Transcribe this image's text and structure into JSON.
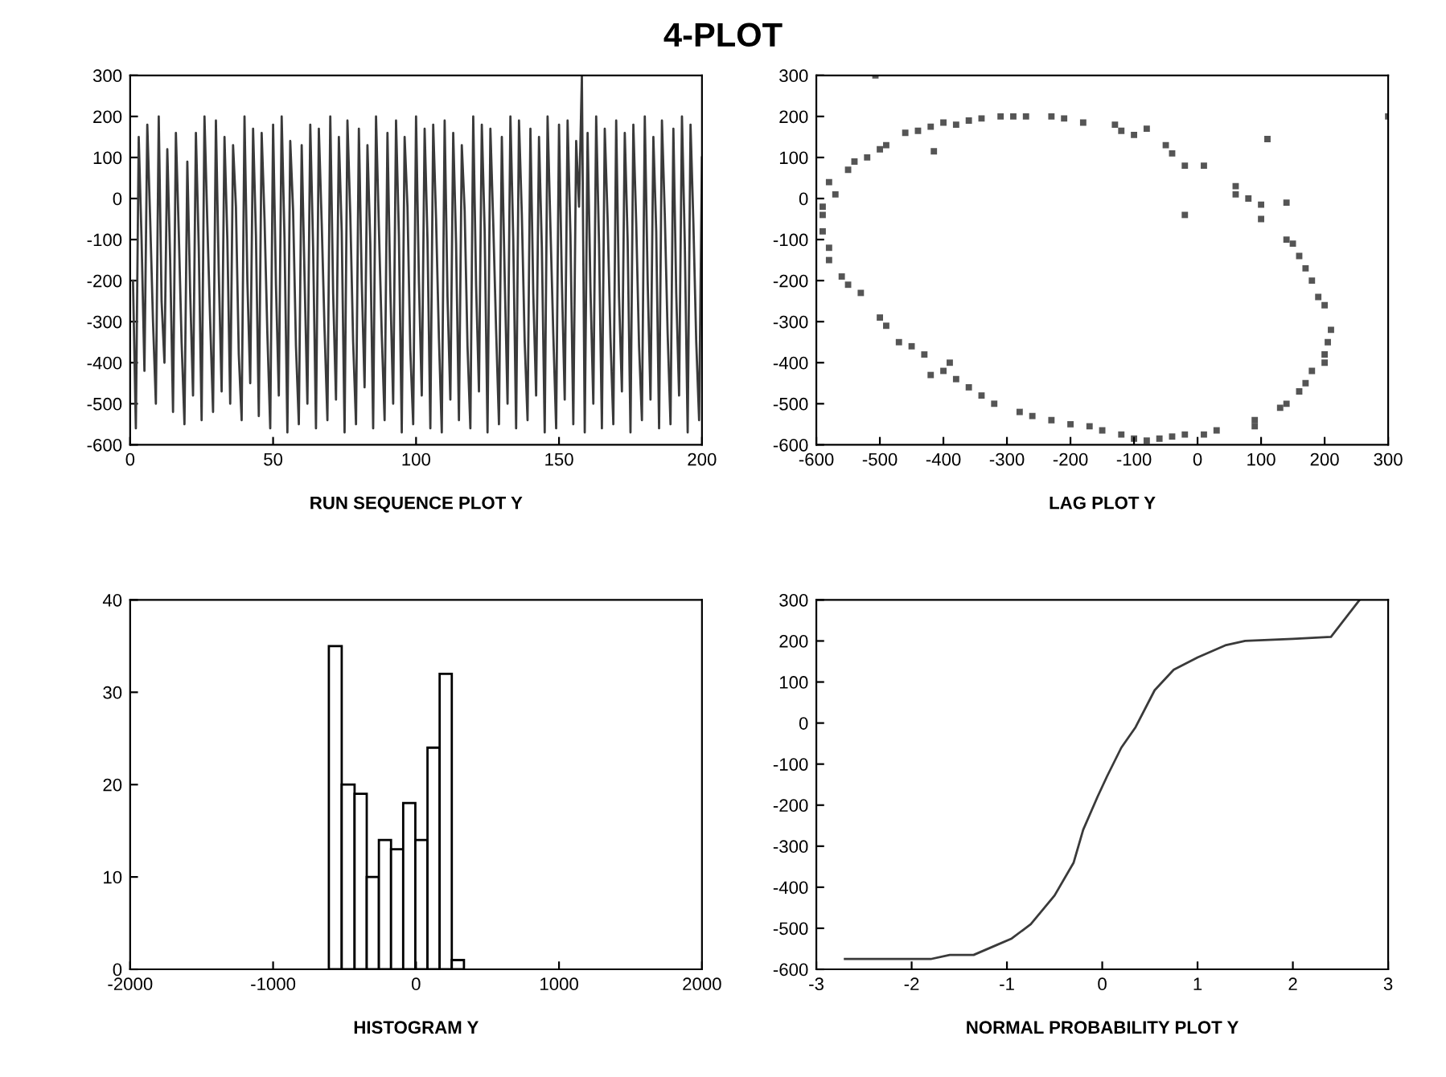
{
  "chart_data": [
    {
      "type": "line",
      "title": "4-PLOT",
      "xlabel": "RUN SEQUENCE PLOT Y",
      "xlim": [
        0,
        200
      ],
      "xticks": [
        0,
        50,
        100,
        150,
        200
      ],
      "ylim": [
        -600,
        300
      ],
      "yticks": [
        -600,
        -500,
        -400,
        -300,
        -200,
        -100,
        0,
        100,
        200,
        300
      ],
      "grid": false,
      "marker": "none",
      "line_style": "solid",
      "series": [
        {
          "color": "#3a3a3a",
          "x": [
            1,
            2,
            3,
            4,
            5,
            6,
            7,
            8,
            9,
            10,
            11,
            12,
            13,
            14,
            15,
            16,
            17,
            18,
            19,
            20,
            21,
            22,
            23,
            24,
            25,
            26,
            27,
            28,
            29,
            30,
            31,
            32,
            33,
            34,
            35,
            36,
            37,
            38,
            39,
            40,
            41,
            42,
            43,
            44,
            45,
            46,
            47,
            48,
            49,
            50,
            51,
            52,
            53,
            54,
            55,
            56,
            57,
            58,
            59,
            60,
            61,
            62,
            63,
            64,
            65,
            66,
            67,
            68,
            69,
            70,
            71,
            72,
            73,
            74,
            75,
            76,
            77,
            78,
            79,
            80,
            81,
            82,
            83,
            84,
            85,
            86,
            87,
            88,
            89,
            90,
            91,
            92,
            93,
            94,
            95,
            96,
            97,
            98,
            99,
            100,
            101,
            102,
            103,
            104,
            105,
            106,
            107,
            108,
            109,
            110,
            111,
            112,
            113,
            114,
            115,
            116,
            117,
            118,
            119,
            120,
            121,
            122,
            123,
            124,
            125,
            126,
            127,
            128,
            129,
            130,
            131,
            132,
            133,
            134,
            135,
            136,
            137,
            138,
            139,
            140,
            141,
            142,
            143,
            144,
            145,
            146,
            147,
            148,
            149,
            150,
            151,
            152,
            153,
            154,
            155,
            156,
            157,
            158,
            159,
            160,
            161,
            162,
            163,
            164,
            165,
            166,
            167,
            168,
            169,
            170,
            171,
            172,
            173,
            174,
            175,
            176,
            177,
            178,
            179,
            180,
            181,
            182,
            183,
            184,
            185,
            186,
            187,
            188,
            189,
            190,
            191,
            192,
            193,
            194,
            195,
            196,
            197,
            198,
            199,
            200
          ],
          "values": [
            -200,
            -560,
            150,
            -100,
            -420,
            180,
            -50,
            -300,
            -500,
            200,
            -250,
            -400,
            120,
            -150,
            -520,
            160,
            -80,
            -350,
            -550,
            90,
            -230,
            -480,
            160,
            -120,
            -540,
            200,
            -60,
            -300,
            -520,
            190,
            -180,
            -470,
            150,
            -100,
            -500,
            130,
            -20,
            -380,
            -540,
            200,
            -200,
            -450,
            170,
            -90,
            -530,
            160,
            -50,
            -330,
            -560,
            180,
            -210,
            -480,
            200,
            -100,
            -570,
            140,
            -30,
            -360,
            -550,
            130,
            -190,
            -500,
            180,
            -120,
            -560,
            170,
            -60,
            -320,
            -540,
            200,
            -230,
            -490,
            150,
            -80,
            -570,
            190,
            -40,
            -350,
            -550,
            170,
            -200,
            -460,
            130,
            -110,
            -560,
            200,
            -70,
            -330,
            -540,
            160,
            -220,
            -500,
            190,
            -90,
            -570,
            150,
            -20,
            -370,
            -550,
            200,
            -200,
            -480,
            170,
            -100,
            -560,
            180,
            -50,
            -340,
            -570,
            190,
            -240,
            -490,
            160,
            -110,
            -540,
            130,
            -30,
            -360,
            -560,
            200,
            -210,
            -470,
            180,
            -80,
            -570,
            170,
            -60,
            -320,
            -550,
            150,
            -190,
            -500,
            200,
            -100,
            -560,
            190,
            -40,
            -350,
            -540,
            170,
            -230,
            -480,
            150,
            -120,
            -570,
            200,
            -70,
            -330,
            -560,
            180,
            -200,
            -490,
            190,
            -90,
            -550,
            140,
            -20,
            300,
            -570,
            160,
            -220,
            -500,
            200,
            -110,
            -560,
            170,
            -50,
            -340,
            -550,
            190,
            -240,
            -470,
            160,
            -100,
            -570,
            180,
            -60,
            -360,
            -540,
            200,
            -200,
            -490,
            150,
            -80,
            -560,
            190,
            -40,
            -330,
            -550,
            170,
            -230,
            -480,
            200,
            -110,
            -570,
            180,
            -60,
            -350,
            -540,
            100
          ]
        }
      ]
    },
    {
      "type": "scatter",
      "xlabel": "LAG PLOT Y",
      "xlim": [
        -600,
        300
      ],
      "xticks": [
        -600,
        -500,
        -400,
        -300,
        -200,
        -100,
        0,
        100,
        200,
        300
      ],
      "ylim": [
        -600,
        300
      ],
      "yticks": [
        -600,
        -500,
        -400,
        -300,
        -200,
        -100,
        0,
        100,
        200,
        300
      ],
      "grid": false,
      "marker": "square",
      "series": [
        {
          "color": "#555555",
          "x": [
            -507,
            -460,
            -440,
            -420,
            -415,
            -400,
            -380,
            -360,
            -340,
            -310,
            -290,
            -270,
            -230,
            -210,
            -180,
            -130,
            -120,
            -100,
            -80,
            -50,
            -40,
            -20,
            10,
            110,
            300,
            60,
            60,
            80,
            100,
            100,
            140,
            140,
            150,
            160,
            170,
            180,
            190,
            200,
            210,
            205,
            200,
            200,
            180,
            170,
            160,
            140,
            130,
            90,
            90,
            30,
            10,
            -20,
            -40,
            -60,
            -80,
            -100,
            -120,
            -150,
            -170,
            -200,
            -230,
            -260,
            -280,
            -320,
            -340,
            -360,
            -380,
            -400,
            -420,
            -390,
            -430,
            -450,
            -470,
            -490,
            -500,
            -530,
            -550,
            -560,
            -580,
            -580,
            -590,
            -590,
            -590,
            -570,
            -580,
            -550,
            -540,
            -520,
            -500,
            -490,
            -20
          ],
          "values": [
            300,
            160,
            165,
            175,
            115,
            185,
            180,
            190,
            195,
            200,
            200,
            200,
            200,
            195,
            185,
            180,
            165,
            155,
            170,
            130,
            110,
            80,
            80,
            145,
            200,
            30,
            10,
            0,
            -15,
            -50,
            -10,
            -100,
            -110,
            -140,
            -170,
            -200,
            -240,
            -260,
            -320,
            -350,
            -380,
            -400,
            -420,
            -450,
            -470,
            -500,
            -510,
            -540,
            -555,
            -565,
            -575,
            -575,
            -580,
            -585,
            -590,
            -585,
            -575,
            -565,
            -555,
            -550,
            -540,
            -530,
            -520,
            -500,
            -480,
            -460,
            -440,
            -420,
            -430,
            -400,
            -380,
            -360,
            -350,
            -310,
            -290,
            -230,
            -210,
            -190,
            -150,
            -120,
            -80,
            -40,
            -20,
            10,
            40,
            70,
            90,
            100,
            120,
            130,
            -40
          ]
        }
      ]
    },
    {
      "type": "histogram",
      "xlabel": "HISTOGRAM Y",
      "xlim": [
        -2000,
        2000
      ],
      "xticks": [
        -2000,
        -1000,
        0,
        1000,
        2000
      ],
      "ylim": [
        0,
        40
      ],
      "yticks": [
        0,
        10,
        20,
        30,
        40
      ],
      "grid": false,
      "color": "#000000",
      "bins": [
        -610,
        -520,
        -430,
        -345,
        -260,
        -175,
        -90,
        -5,
        80,
        165,
        250,
        335
      ],
      "values": [
        35,
        20,
        19,
        10,
        14,
        13,
        18,
        14,
        24,
        32,
        1
      ]
    },
    {
      "type": "line",
      "xlabel": "NORMAL PROBABILITY PLOT Y",
      "xlim": [
        -3,
        3
      ],
      "xticks": [
        -3,
        -2,
        -1,
        0,
        1,
        2,
        3
      ],
      "ylim": [
        -600,
        300
      ],
      "yticks": [
        -600,
        -500,
        -400,
        -300,
        -200,
        -100,
        0,
        100,
        200,
        300
      ],
      "grid": false,
      "marker": "none",
      "line_style": "solid",
      "series": [
        {
          "color": "#3a3a3a",
          "x": [
            -2.7,
            -2,
            -1.8,
            -1.6,
            -1.35,
            -1.1,
            -0.95,
            -0.75,
            -0.5,
            -0.3,
            -0.2,
            -0.05,
            0.05,
            0.2,
            0.35,
            0.55,
            0.75,
            1,
            1.3,
            1.5,
            2,
            2.4,
            2.7
          ],
          "values": [
            -575,
            -575,
            -575,
            -565,
            -565,
            -540,
            -525,
            -490,
            -420,
            -340,
            -260,
            -180,
            -130,
            -60,
            -10,
            80,
            130,
            160,
            190,
            200,
            205,
            210,
            300
          ]
        }
      ]
    }
  ]
}
